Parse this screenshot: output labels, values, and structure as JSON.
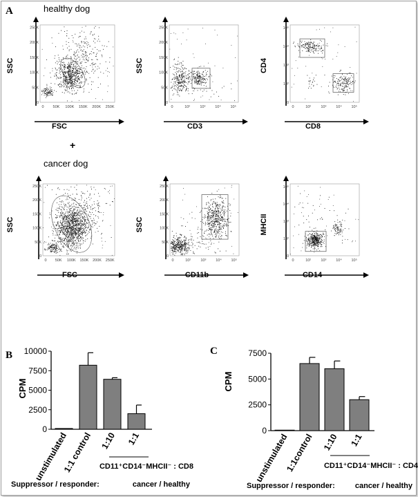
{
  "panel_a": {
    "letter": "A",
    "healthy_label": "healthy dog",
    "plus": "+",
    "cancer_label": "cancer dog",
    "plots": [
      {
        "id": "h1",
        "y": "SSC",
        "x": "FSC",
        "yticks": [
          "0",
          "50K",
          "100K",
          "150K",
          "200K",
          "250K"
        ],
        "xticks": [
          "0",
          "50K",
          "100K",
          "150K",
          "200K",
          "250K"
        ]
      },
      {
        "id": "h2",
        "y": "SSC",
        "x": "CD3",
        "yticks": [
          "0",
          "50K",
          "100K",
          "150K",
          "200K",
          "250K"
        ],
        "xticks": [
          "0",
          "10²",
          "10³",
          "10⁴",
          "10⁵"
        ]
      },
      {
        "id": "h3",
        "y": "CD4",
        "x": "CD8",
        "yticks": [
          "0",
          "10²",
          "10³",
          "10⁴",
          "10⁵"
        ],
        "xticks": [
          "0",
          "10²",
          "10³",
          "10⁴",
          "10⁵"
        ]
      },
      {
        "id": "c1",
        "y": "SSC",
        "x": "FSC",
        "yticks": [
          "0",
          "50K",
          "100K",
          "150K",
          "200K",
          "250K"
        ],
        "xticks": [
          "0",
          "50K",
          "100K",
          "150K",
          "200K",
          "250K"
        ]
      },
      {
        "id": "c2",
        "y": "SSC",
        "x": "CD11b",
        "yticks": [
          "0",
          "50K",
          "100K",
          "150K",
          "200K",
          "250K"
        ],
        "xticks": [
          "0",
          "10²",
          "10³",
          "10⁴",
          "10⁵"
        ]
      },
      {
        "id": "c3",
        "y": "MHCII",
        "x": "CD14",
        "yticks": [
          "0",
          "10²",
          "10³",
          "10⁴",
          "10⁵"
        ],
        "xticks": [
          "0",
          "10²",
          "10³",
          "10⁴",
          "10⁵"
        ]
      }
    ]
  },
  "chart_data": [
    {
      "type": "bar",
      "panel": "B",
      "ylabel": "CPM",
      "ylim": [
        0,
        10000
      ],
      "yticks": [
        "0",
        "2500",
        "5000",
        "7500",
        "10000"
      ],
      "ytick_values": [
        0,
        2500,
        5000,
        7500,
        10000
      ],
      "categories": [
        "unstimulated",
        "1:1 control",
        "1:10",
        "1:1"
      ],
      "values": [
        100,
        8200,
        6400,
        2000
      ],
      "errors": [
        0,
        1600,
        200,
        1100
      ],
      "group_label": "CD11⁺CD14⁻MHCII⁻ : CD8",
      "footer_left": "Suppressor / responder:",
      "footer_right": "cancer / healthy"
    },
    {
      "type": "bar",
      "panel": "C",
      "ylabel": "CPM",
      "ylim": [
        0,
        7500
      ],
      "yticks": [
        "0",
        "2500",
        "5000",
        "7500"
      ],
      "ytick_values": [
        0,
        2500,
        5000,
        7500
      ],
      "categories": [
        "unstimulated",
        "1:1control",
        "1:10",
        "1:1"
      ],
      "values": [
        50,
        6500,
        6000,
        3000
      ],
      "errors": [
        0,
        600,
        750,
        300
      ],
      "group_label": "CD11⁺CD14⁻MHCII⁻ : CD4",
      "footer_left": "Suppressor / responder:",
      "footer_right": "cancer / healthy"
    }
  ]
}
